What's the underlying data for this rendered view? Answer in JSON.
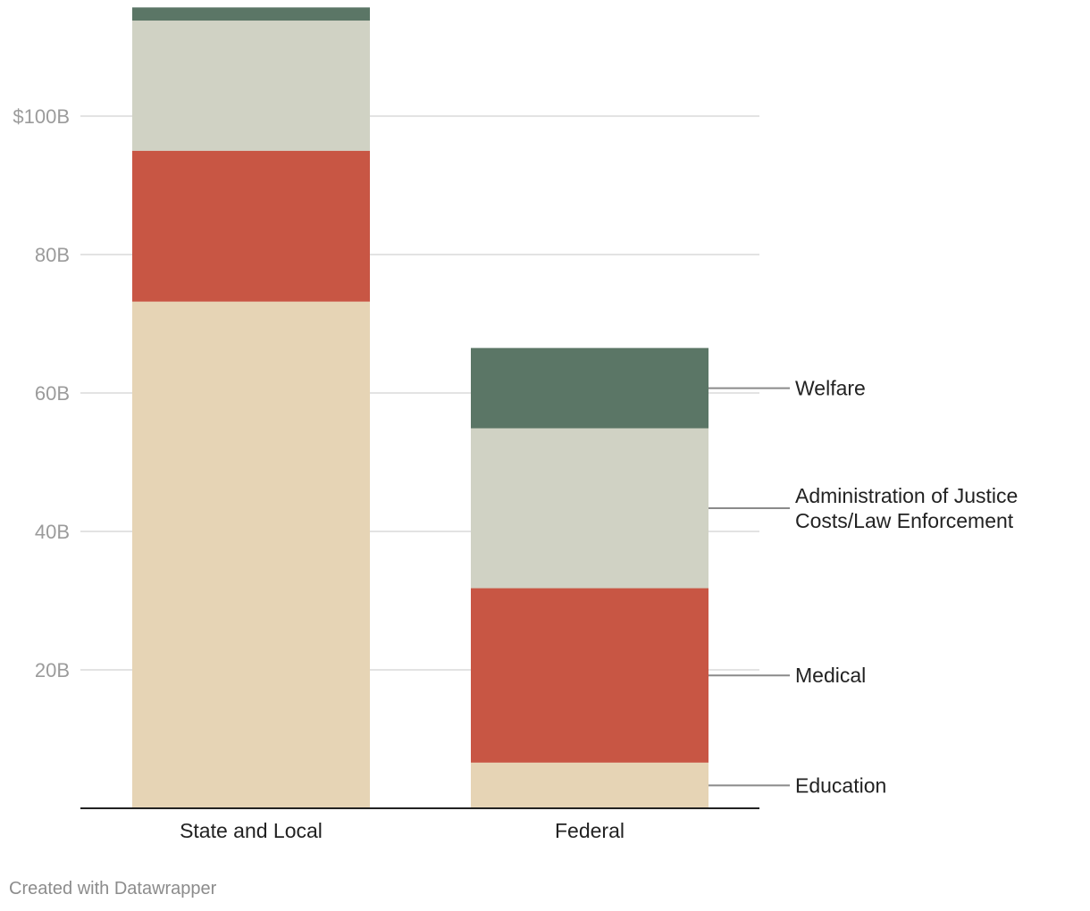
{
  "chart_data": {
    "type": "bar",
    "stacked": true,
    "categories": [
      "State and Local",
      "Federal"
    ],
    "series": [
      {
        "name": "Education",
        "values": [
          73.2,
          6.6
        ],
        "color": "#e6d4b5"
      },
      {
        "name": "Medical",
        "values": [
          21.8,
          25.2
        ],
        "color": "#c85644"
      },
      {
        "name": "Administration of Justice Costs/Law Enforcement",
        "name_lines": [
          "Administration of Justice",
          "Costs/Law Enforcement"
        ],
        "values": [
          18.8,
          23.1
        ],
        "color": "#d0d2c4"
      },
      {
        "name": "Welfare",
        "values": [
          1.9,
          11.6
        ],
        "color": "#5b7666"
      }
    ],
    "yticks": [
      {
        "value": 20,
        "label": "20B"
      },
      {
        "value": 40,
        "label": "40B"
      },
      {
        "value": 60,
        "label": "60B"
      },
      {
        "value": 80,
        "label": "80B"
      },
      {
        "value": 100,
        "label": "$100B"
      }
    ],
    "ylim": [
      0,
      115.7
    ],
    "grid": true,
    "legend": "direct labels right of last bar"
  },
  "footer": {
    "credit": "Created with Datawrapper"
  },
  "colors": {
    "grid": "#e3e3e3",
    "axis": "#222222",
    "leader": "#8a8a8a"
  }
}
